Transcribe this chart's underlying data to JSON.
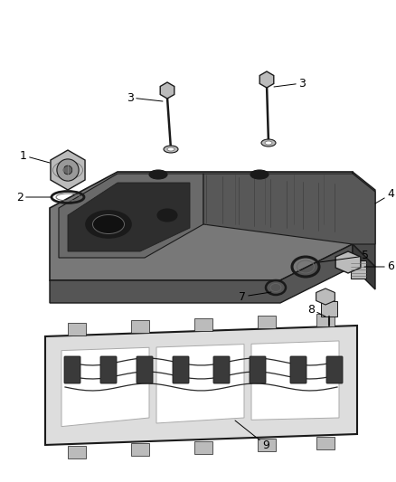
{
  "background_color": "#ffffff",
  "dark": "#1a1a1a",
  "mid_dark": "#3a3a3a",
  "mid": "#666666",
  "light": "#999999",
  "lighter": "#bbbbbb",
  "lightest": "#dddddd",
  "figsize": [
    4.38,
    5.33
  ],
  "dpi": 100
}
